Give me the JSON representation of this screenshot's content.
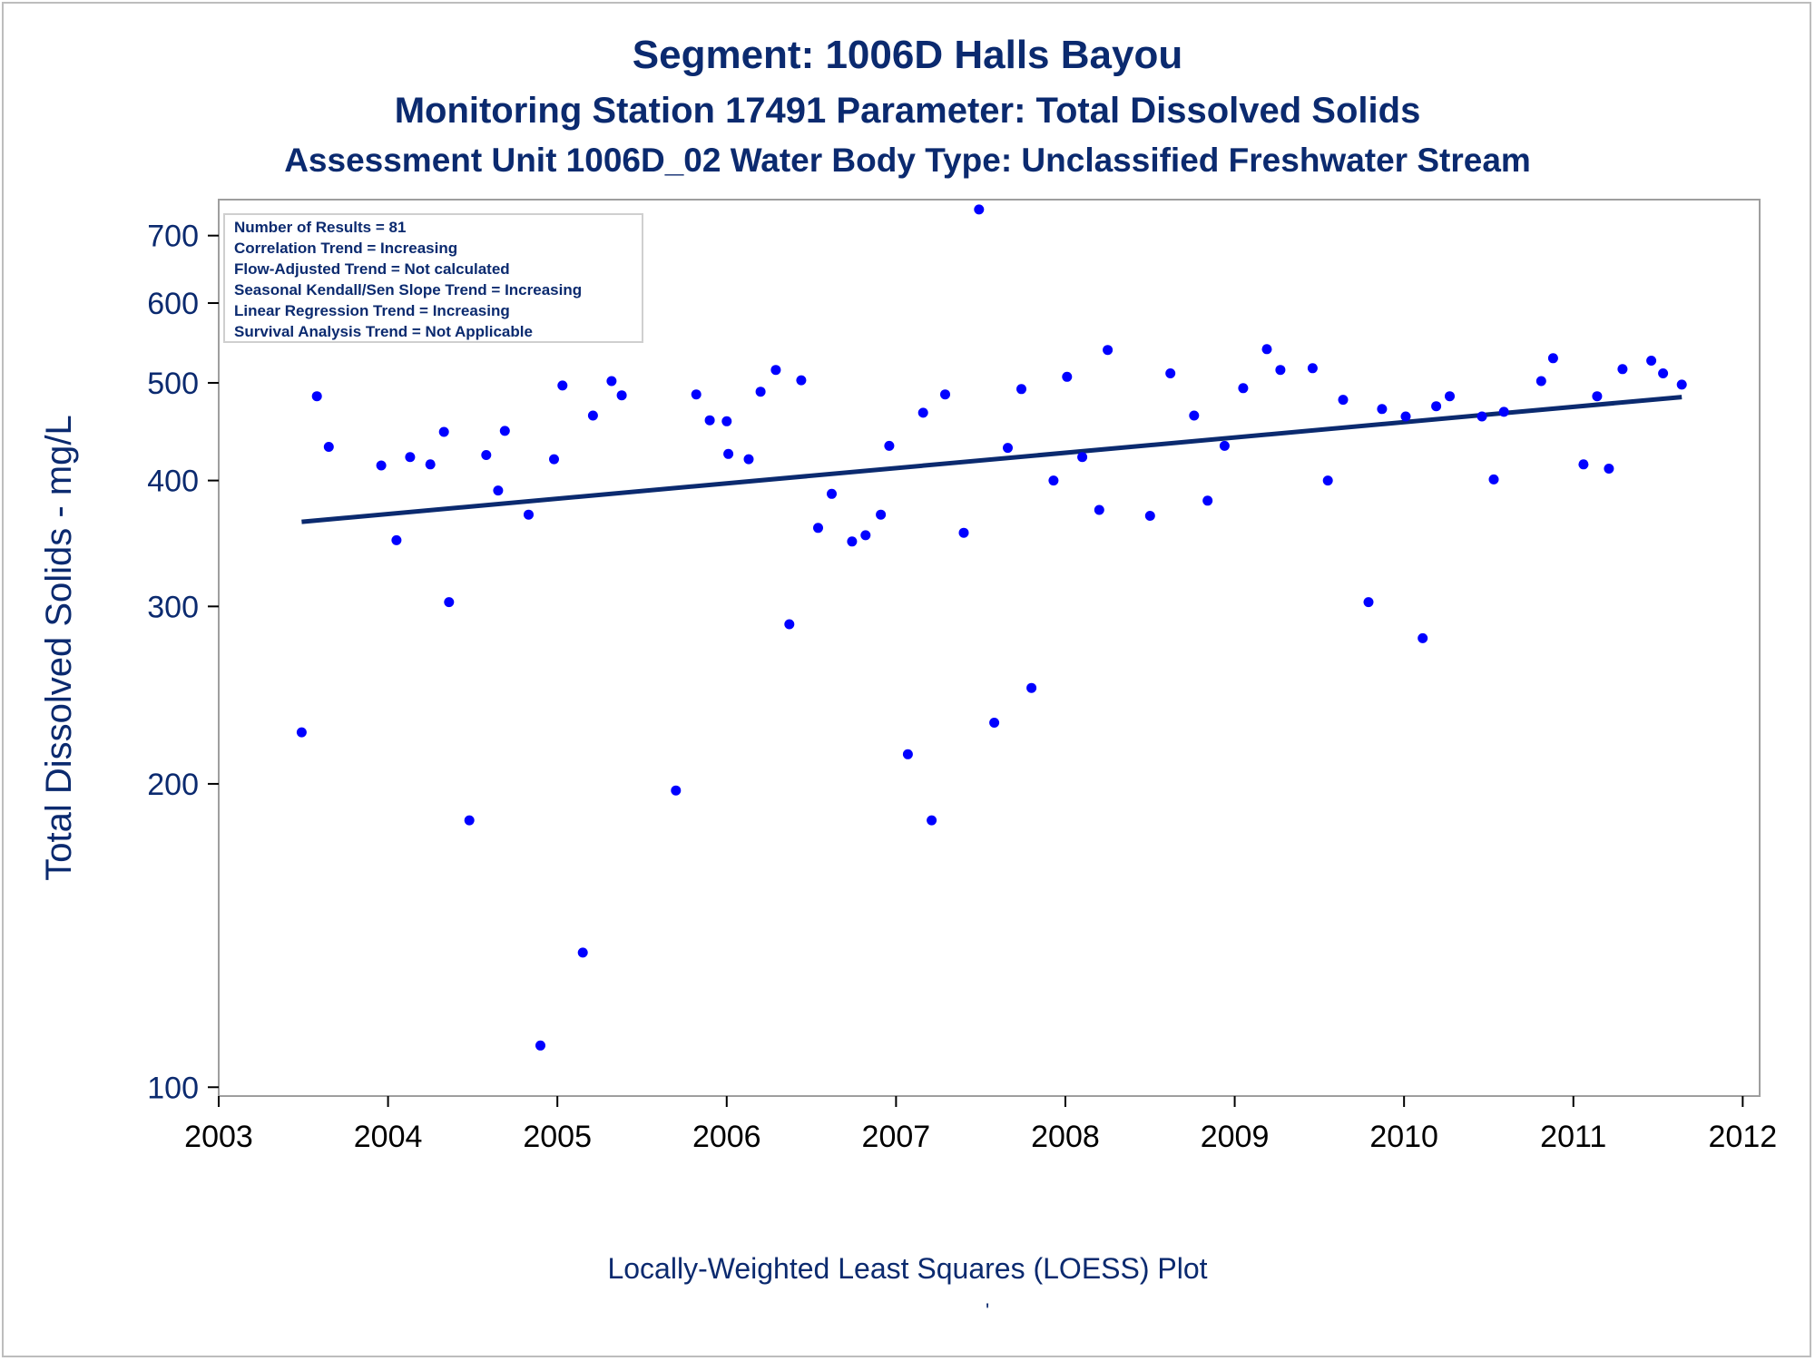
{
  "titles": {
    "line1": "Segment: 1006D  Halls Bayou",
    "line2": "Monitoring Station 17491 Parameter: Total Dissolved Solids",
    "line3": "Assessment Unit 1006D_02   Water Body Type: Unclassified Freshwater Stream"
  },
  "footnote": "Locally-Weighted Least Squares (LOESS) Plot",
  "footnote_mark": "'",
  "stats_box": {
    "lines": [
      "Number of Results = 81",
      "Correlation Trend = Increasing",
      "Flow-Adjusted Trend = Not calculated",
      "Seasonal Kendall/Sen Slope Trend = Increasing",
      "Linear Regression Trend = Increasing",
      "Survival Analysis Trend = Not Applicable"
    ]
  },
  "colors": {
    "title": "#0b2a6f",
    "points": "#0000ff",
    "trend_line": "#0b2a6f",
    "frame": "#9e9e9e"
  },
  "chart_data": {
    "type": "scatter",
    "ylabel": "Total Dissolved Solids - mg/L",
    "xlabel": "",
    "y_scale": "log",
    "ylim": [
      98,
      760
    ],
    "xlim": [
      2003,
      2012.1
    ],
    "y_ticks": [
      100,
      200,
      300,
      400,
      500,
      600,
      700
    ],
    "x_ticks": [
      2003,
      2004,
      2005,
      2006,
      2007,
      2008,
      2009,
      2010,
      2011,
      2012
    ],
    "grid": false,
    "series": [
      {
        "marker": "dot",
        "points": [
          [
            2003.49,
            225
          ],
          [
            2003.58,
            485
          ],
          [
            2003.65,
            432
          ],
          [
            2003.96,
            414
          ],
          [
            2004.05,
            349
          ],
          [
            2004.13,
            422
          ],
          [
            2004.25,
            415
          ],
          [
            2004.33,
            447
          ],
          [
            2004.36,
            303
          ],
          [
            2004.48,
            184
          ],
          [
            2004.58,
            424
          ],
          [
            2004.65,
            391
          ],
          [
            2004.69,
            448
          ],
          [
            2004.83,
            370
          ],
          [
            2004.9,
            110
          ],
          [
            2004.98,
            420
          ],
          [
            2005.03,
            497
          ],
          [
            2005.15,
            136
          ],
          [
            2005.21,
            464
          ],
          [
            2005.32,
            502
          ],
          [
            2005.38,
            486
          ],
          [
            2005.7,
            197
          ],
          [
            2005.82,
            487
          ],
          [
            2005.9,
            459
          ],
          [
            2006.0,
            458
          ],
          [
            2006.01,
            425
          ],
          [
            2006.13,
            420
          ],
          [
            2006.2,
            490
          ],
          [
            2006.29,
            515
          ],
          [
            2006.37,
            288
          ],
          [
            2006.44,
            503
          ],
          [
            2006.54,
            359
          ],
          [
            2006.62,
            388
          ],
          [
            2006.74,
            348
          ],
          [
            2006.82,
            353
          ],
          [
            2006.91,
            370
          ],
          [
            2006.96,
            433
          ],
          [
            2007.07,
            214
          ],
          [
            2007.16,
            467
          ],
          [
            2007.21,
            184
          ],
          [
            2007.29,
            487
          ],
          [
            2007.4,
            355
          ],
          [
            2007.49,
            743
          ],
          [
            2007.58,
            230
          ],
          [
            2007.66,
            431
          ],
          [
            2007.74,
            493
          ],
          [
            2007.8,
            249
          ],
          [
            2007.93,
            400
          ],
          [
            2008.01,
            507
          ],
          [
            2008.1,
            422
          ],
          [
            2008.2,
            374
          ],
          [
            2008.25,
            539
          ],
          [
            2008.5,
            369
          ],
          [
            2008.62,
            511
          ],
          [
            2008.76,
            464
          ],
          [
            2008.84,
            382
          ],
          [
            2008.94,
            433
          ],
          [
            2009.05,
            494
          ],
          [
            2009.19,
            540
          ],
          [
            2009.27,
            515
          ],
          [
            2009.46,
            517
          ],
          [
            2009.55,
            400
          ],
          [
            2009.64,
            481
          ],
          [
            2009.79,
            303
          ],
          [
            2009.87,
            471
          ],
          [
            2010.01,
            463
          ],
          [
            2010.11,
            279
          ],
          [
            2010.19,
            474
          ],
          [
            2010.27,
            485
          ],
          [
            2010.46,
            463
          ],
          [
            2010.53,
            401
          ],
          [
            2010.59,
            468
          ],
          [
            2010.81,
            502
          ],
          [
            2010.88,
            529
          ],
          [
            2011.06,
            415
          ],
          [
            2011.14,
            485
          ],
          [
            2011.21,
            411
          ],
          [
            2011.29,
            516
          ],
          [
            2011.46,
            526
          ],
          [
            2011.53,
            511
          ],
          [
            2011.64,
            498
          ]
        ]
      },
      {
        "marker": "line",
        "points": [
          [
            2003.49,
            364
          ],
          [
            2011.64,
            484
          ]
        ]
      }
    ]
  }
}
